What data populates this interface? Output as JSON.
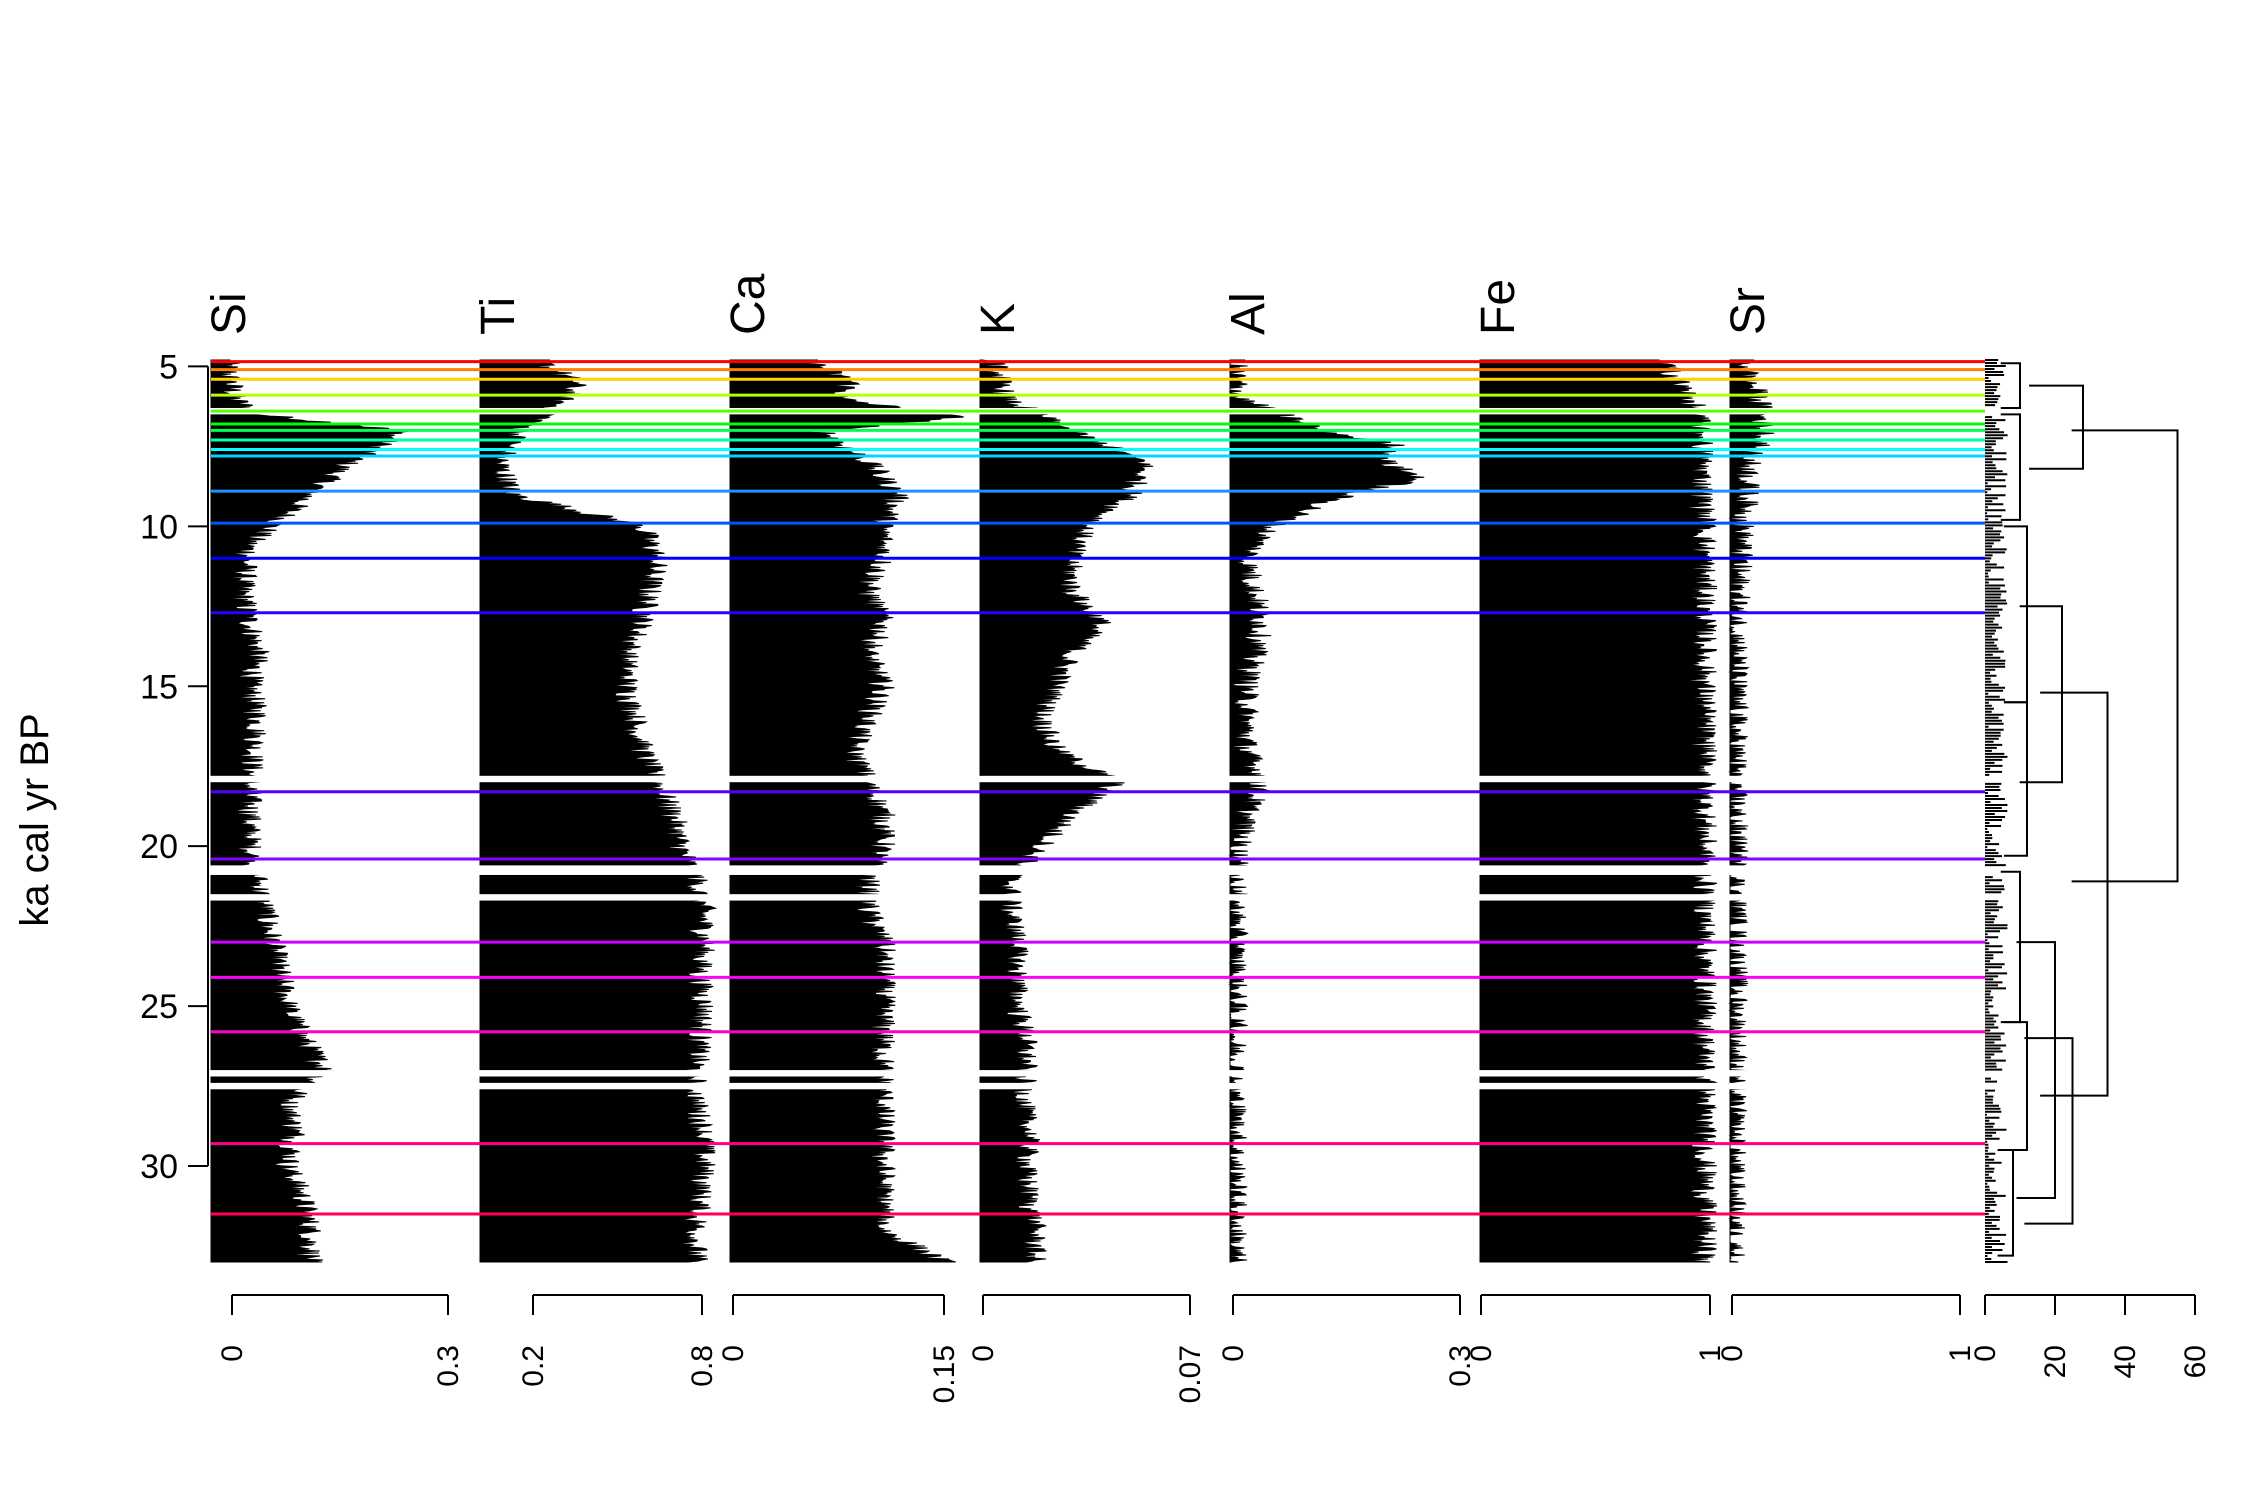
{
  "chart_data": {
    "type": "area",
    "ylabel": "ka cal yr BP",
    "ylim": [
      4.8,
      33.0
    ],
    "yticks": [
      5,
      10,
      15,
      20,
      25,
      30
    ],
    "grid": false,
    "orientation": "vertical-depth",
    "panels": [
      {
        "name": "Si",
        "xlim": [
          0,
          0.3
        ],
        "xticks": [
          "0",
          "0.3"
        ],
        "profile": [
          [
            4.8,
            0.02
          ],
          [
            6,
            0.03
          ],
          [
            6.5,
            0.06
          ],
          [
            7,
            0.25
          ],
          [
            7.5,
            0.22
          ],
          [
            8,
            0.18
          ],
          [
            9,
            0.13
          ],
          [
            9.8,
            0.09
          ],
          [
            10.5,
            0.05
          ],
          [
            12,
            0.04
          ],
          [
            13,
            0.05
          ],
          [
            14,
            0.06
          ],
          [
            15,
            0.05
          ],
          [
            16,
            0.06
          ],
          [
            18,
            0.05
          ],
          [
            20,
            0.05
          ],
          [
            21,
            0.06
          ],
          [
            22,
            0.07
          ],
          [
            23,
            0.08
          ],
          [
            24,
            0.09
          ],
          [
            25,
            0.1
          ],
          [
            26,
            0.12
          ],
          [
            27,
            0.15
          ],
          [
            28,
            0.1
          ],
          [
            29,
            0.11
          ],
          [
            30,
            0.1
          ],
          [
            31,
            0.12
          ],
          [
            32,
            0.13
          ],
          [
            33,
            0.13
          ]
        ]
      },
      {
        "name": "Ti",
        "xlim": [
          0.2,
          0.8
        ],
        "xticks": [
          "0.2",
          "0.8"
        ],
        "profile": [
          [
            4.8,
            0.35
          ],
          [
            5.5,
            0.45
          ],
          [
            6.5,
            0.38
          ],
          [
            7,
            0.3
          ],
          [
            8,
            0.25
          ],
          [
            9,
            0.28
          ],
          [
            10,
            0.62
          ],
          [
            11,
            0.66
          ],
          [
            12,
            0.64
          ],
          [
            13,
            0.62
          ],
          [
            14,
            0.58
          ],
          [
            15,
            0.58
          ],
          [
            16,
            0.6
          ],
          [
            17,
            0.62
          ],
          [
            18,
            0.66
          ],
          [
            19,
            0.7
          ],
          [
            20,
            0.72
          ],
          [
            21,
            0.76
          ],
          [
            22,
            0.78
          ],
          [
            23,
            0.78
          ],
          [
            24,
            0.77
          ],
          [
            25,
            0.78
          ],
          [
            26,
            0.77
          ],
          [
            27,
            0.76
          ],
          [
            28,
            0.76
          ],
          [
            29,
            0.78
          ],
          [
            30,
            0.78
          ],
          [
            31,
            0.77
          ],
          [
            32,
            0.76
          ],
          [
            33,
            0.76
          ]
        ]
      },
      {
        "name": "Ca",
        "xlim": [
          0,
          0.15
        ],
        "xticks": [
          "0",
          "0.15"
        ],
        "profile": [
          [
            4.8,
            0.05
          ],
          [
            5.5,
            0.08
          ],
          [
            6,
            0.07
          ],
          [
            6.6,
            0.15
          ],
          [
            7,
            0.06
          ],
          [
            8,
            0.09
          ],
          [
            9,
            0.11
          ],
          [
            10,
            0.1
          ],
          [
            11,
            0.1
          ],
          [
            12,
            0.09
          ],
          [
            13,
            0.1
          ],
          [
            14,
            0.09
          ],
          [
            15,
            0.1
          ],
          [
            16,
            0.09
          ],
          [
            17,
            0.08
          ],
          [
            18,
            0.09
          ],
          [
            19,
            0.1
          ],
          [
            20,
            0.1
          ],
          [
            21,
            0.09
          ],
          [
            22,
            0.09
          ],
          [
            23,
            0.1
          ],
          [
            24,
            0.1
          ],
          [
            25,
            0.1
          ],
          [
            26,
            0.1
          ],
          [
            27,
            0.1
          ],
          [
            28,
            0.1
          ],
          [
            29,
            0.1
          ],
          [
            30,
            0.1
          ],
          [
            31,
            0.1
          ],
          [
            32,
            0.1
          ],
          [
            33,
            0.14
          ]
        ]
      },
      {
        "name": "K",
        "xlim": [
          0,
          0.07
        ],
        "xticks": [
          "0",
          "0.07"
        ],
        "profile": [
          [
            4.8,
            0.005
          ],
          [
            6,
            0.008
          ],
          [
            7,
            0.03
          ],
          [
            8,
            0.055
          ],
          [
            9,
            0.05
          ],
          [
            10,
            0.035
          ],
          [
            11,
            0.03
          ],
          [
            12,
            0.03
          ],
          [
            13,
            0.04
          ],
          [
            14,
            0.03
          ],
          [
            15,
            0.025
          ],
          [
            16,
            0.02
          ],
          [
            17,
            0.025
          ],
          [
            18,
            0.045
          ],
          [
            19,
            0.03
          ],
          [
            20,
            0.02
          ],
          [
            21,
            0.01
          ],
          [
            22,
            0.01
          ],
          [
            23,
            0.012
          ],
          [
            24,
            0.012
          ],
          [
            25,
            0.012
          ],
          [
            26,
            0.015
          ],
          [
            27,
            0.015
          ],
          [
            28,
            0.014
          ],
          [
            29,
            0.016
          ],
          [
            30,
            0.015
          ],
          [
            31,
            0.016
          ],
          [
            32,
            0.018
          ],
          [
            33,
            0.018
          ]
        ]
      },
      {
        "name": "Al",
        "xlim": [
          0,
          0.3
        ],
        "xticks": [
          "0",
          "0.3"
        ],
        "profile": [
          [
            4.8,
            0.005
          ],
          [
            6,
            0.01
          ],
          [
            7,
            0.12
          ],
          [
            7.5,
            0.22
          ],
          [
            8,
            0.2
          ],
          [
            8.5,
            0.25
          ],
          [
            9,
            0.15
          ],
          [
            10,
            0.05
          ],
          [
            11,
            0.02
          ],
          [
            12,
            0.03
          ],
          [
            13,
            0.04
          ],
          [
            14,
            0.03
          ],
          [
            15,
            0.02
          ],
          [
            16,
            0.02
          ],
          [
            17,
            0.02
          ],
          [
            18,
            0.04
          ],
          [
            19,
            0.02
          ],
          [
            20,
            0.01
          ],
          [
            21,
            0.005
          ],
          [
            22,
            0.005
          ],
          [
            23,
            0.005
          ],
          [
            24,
            0.005
          ],
          [
            25,
            0.005
          ],
          [
            26,
            0.005
          ],
          [
            27,
            0.005
          ],
          [
            28,
            0.005
          ],
          [
            29,
            0.005
          ],
          [
            30,
            0.005
          ],
          [
            31,
            0.005
          ],
          [
            32,
            0.005
          ],
          [
            33,
            0.005
          ]
        ]
      },
      {
        "name": "Fe",
        "xlim": [
          0,
          1
        ],
        "xticks": [
          "0",
          "1"
        ],
        "profile": [
          [
            4.8,
            0.8
          ],
          [
            6,
            0.92
          ],
          [
            7,
            0.97
          ],
          [
            8,
            0.97
          ],
          [
            9,
            0.97
          ],
          [
            10,
            0.98
          ],
          [
            15,
            0.98
          ],
          [
            20,
            0.98
          ],
          [
            25,
            0.98
          ],
          [
            30,
            0.98
          ],
          [
            33,
            0.98
          ]
        ]
      },
      {
        "name": "Sr",
        "xlim": [
          0,
          1
        ],
        "xticks": [
          "0",
          "1"
        ],
        "profile": [
          [
            4.8,
            0.05
          ],
          [
            6,
            0.12
          ],
          [
            7,
            0.15
          ],
          [
            8,
            0.08
          ],
          [
            9,
            0.07
          ],
          [
            10,
            0.05
          ],
          [
            12,
            0.03
          ],
          [
            15,
            0.02
          ],
          [
            20,
            0.02
          ],
          [
            25,
            0.02
          ],
          [
            30,
            0.01
          ],
          [
            33,
            0.01
          ]
        ]
      }
    ],
    "gaps": [
      [
        6.3,
        6.5
      ],
      [
        17.8,
        18.0
      ],
      [
        20.6,
        20.9
      ],
      [
        21.5,
        21.7
      ],
      [
        27.0,
        27.2
      ],
      [
        27.4,
        27.6
      ]
    ],
    "zone_boundaries": [
      {
        "age": 4.85,
        "color": "#ff0000"
      },
      {
        "age": 5.1,
        "color": "#ff7f00"
      },
      {
        "age": 5.4,
        "color": "#ffd200"
      },
      {
        "age": 5.9,
        "color": "#b4ff00"
      },
      {
        "age": 6.4,
        "color": "#55ff00"
      },
      {
        "age": 6.8,
        "color": "#00ff00"
      },
      {
        "age": 7.0,
        "color": "#00ff55"
      },
      {
        "age": 7.3,
        "color": "#00ffaa"
      },
      {
        "age": 7.6,
        "color": "#00ffff"
      },
      {
        "age": 7.8,
        "color": "#00d4ff"
      },
      {
        "age": 8.9,
        "color": "#1e90ff"
      },
      {
        "age": 9.9,
        "color": "#0055ff"
      },
      {
        "age": 11.0,
        "color": "#0000ff"
      },
      {
        "age": 12.7,
        "color": "#2a00ff"
      },
      {
        "age": 18.3,
        "color": "#5500ff"
      },
      {
        "age": 20.4,
        "color": "#8800ff"
      },
      {
        "age": 23.0,
        "color": "#cc00ff"
      },
      {
        "age": 24.1,
        "color": "#ff00ff"
      },
      {
        "age": 25.8,
        "color": "#ff00cc"
      },
      {
        "age": 29.3,
        "color": "#ff0088"
      },
      {
        "age": 31.5,
        "color": "#ff0055"
      }
    ],
    "dendrogram": {
      "xlim": [
        0,
        60
      ],
      "xticks": [
        "0",
        "20",
        "40",
        "60"
      ]
    }
  }
}
